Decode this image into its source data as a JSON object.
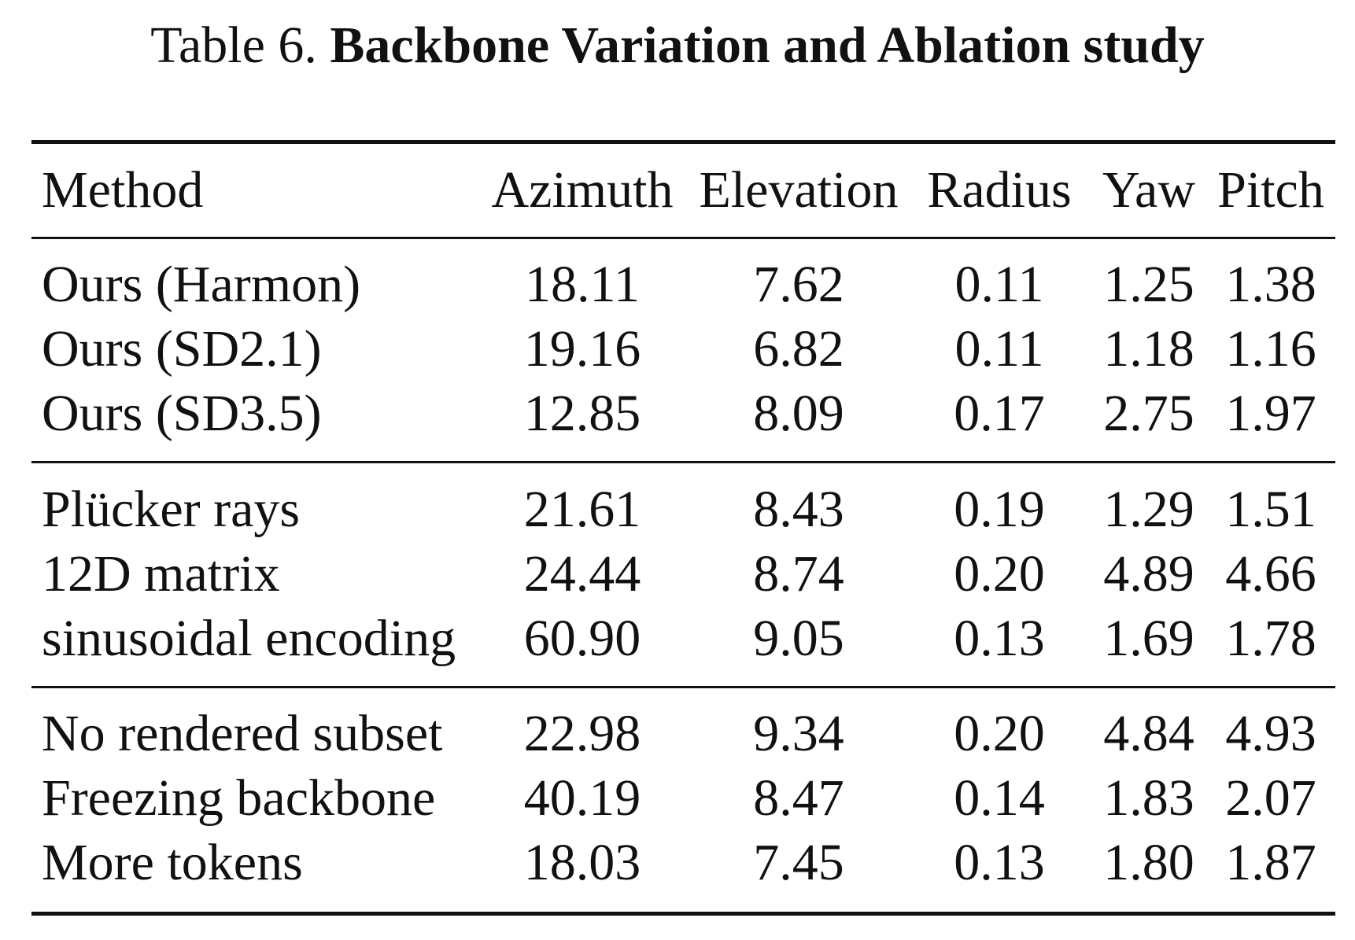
{
  "caption": {
    "prefix": "Table 6.",
    "title": "Backbone Variation and Ablation study"
  },
  "header": {
    "method": "Method",
    "azimuth": "Azimuth",
    "elevation": "Elevation",
    "radius": "Radius",
    "yaw": "Yaw",
    "pitch": "Pitch"
  },
  "groups": [
    [
      {
        "method": "Ours (Harmon)",
        "azimuth": "18.11",
        "elevation": "7.62",
        "radius": "0.11",
        "yaw": "1.25",
        "pitch": "1.38"
      },
      {
        "method": "Ours (SD2.1)",
        "azimuth": "19.16",
        "elevation": "6.82",
        "radius": "0.11",
        "yaw": "1.18",
        "pitch": "1.16"
      },
      {
        "method": "Ours (SD3.5)",
        "azimuth": "12.85",
        "elevation": "8.09",
        "radius": "0.17",
        "yaw": "2.75",
        "pitch": "1.97"
      }
    ],
    [
      {
        "method": "Plücker rays",
        "azimuth": "21.61",
        "elevation": "8.43",
        "radius": "0.19",
        "yaw": "1.29",
        "pitch": "1.51"
      },
      {
        "method": "12D matrix",
        "azimuth": "24.44",
        "elevation": "8.74",
        "radius": "0.20",
        "yaw": "4.89",
        "pitch": "4.66"
      },
      {
        "method": "sinusoidal encoding",
        "azimuth": "60.90",
        "elevation": "9.05",
        "radius": "0.13",
        "yaw": "1.69",
        "pitch": "1.78"
      }
    ],
    [
      {
        "method": "No rendered subset",
        "azimuth": "22.98",
        "elevation": "9.34",
        "radius": "0.20",
        "yaw": "4.84",
        "pitch": "4.93"
      },
      {
        "method": "Freezing backbone",
        "azimuth": "40.19",
        "elevation": "8.47",
        "radius": "0.14",
        "yaw": "1.83",
        "pitch": "2.07"
      },
      {
        "method": "More tokens",
        "azimuth": "18.03",
        "elevation": "7.45",
        "radius": "0.13",
        "yaw": "1.80",
        "pitch": "1.87"
      }
    ]
  ]
}
